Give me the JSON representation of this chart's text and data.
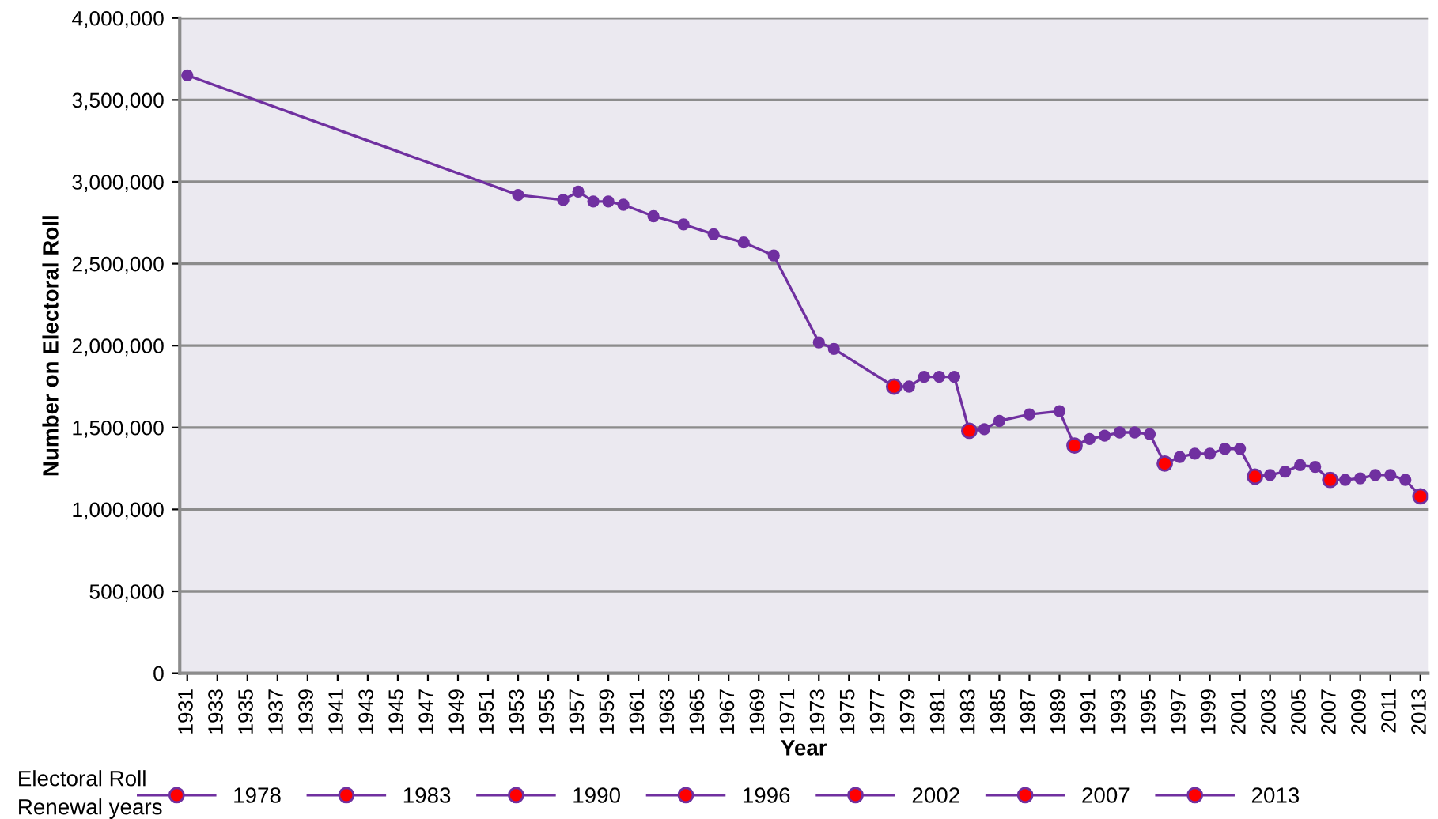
{
  "chart_data": {
    "type": "line",
    "xlabel": "Year",
    "ylabel": "Number on Electoral Roll",
    "legend_title": "Electoral Roll\nRenewal years",
    "xlim": [
      1930.5,
      2013.5
    ],
    "xticks": [
      1931,
      1933,
      1935,
      1937,
      1939,
      1941,
      1943,
      1945,
      1947,
      1949,
      1951,
      1953,
      1955,
      1957,
      1959,
      1961,
      1963,
      1965,
      1967,
      1969,
      1971,
      1973,
      1975,
      1977,
      1979,
      1981,
      1983,
      1985,
      1987,
      1989,
      1991,
      1993,
      1995,
      1997,
      1999,
      2001,
      2003,
      2005,
      2007,
      2009,
      2011,
      2013
    ],
    "ylim": [
      0,
      4000000
    ],
    "yticks": [
      {
        "value": 0,
        "label": "0"
      },
      {
        "value": 500000,
        "label": "500,000"
      },
      {
        "value": 1000000,
        "label": "1,000,000"
      },
      {
        "value": 1500000,
        "label": "1,500,000"
      },
      {
        "value": 2000000,
        "label": "2,000,000"
      },
      {
        "value": 2500000,
        "label": "2,500,000"
      },
      {
        "value": 3000000,
        "label": "3,000,000"
      },
      {
        "value": 3500000,
        "label": "3,500,000"
      },
      {
        "value": 4000000,
        "label": "4,000,000"
      }
    ],
    "grid": "y",
    "legend": "bottom",
    "marker": "circle",
    "series": [
      {
        "color": "#7030a0",
        "x": [
          1931,
          1953,
          1956,
          1957,
          1958,
          1959,
          1960,
          1962,
          1964,
          1966,
          1968,
          1970,
          1973,
          1974,
          1978,
          1979,
          1980,
          1981,
          1982,
          1983,
          1984,
          1985,
          1987,
          1989,
          1990,
          1991,
          1992,
          1993,
          1994,
          1995,
          1996,
          1997,
          1998,
          1999,
          2000,
          2001,
          2002,
          2003,
          2004,
          2005,
          2006,
          2007,
          2008,
          2009,
          2010,
          2011,
          2012,
          2013
        ],
        "values": [
          3650000,
          2920000,
          2890000,
          2940000,
          2880000,
          2880000,
          2860000,
          2790000,
          2740000,
          2680000,
          2630000,
          2550000,
          2020000,
          1980000,
          1750000,
          1750000,
          1810000,
          1810000,
          1810000,
          1480000,
          1490000,
          1540000,
          1580000,
          1600000,
          1390000,
          1430000,
          1450000,
          1470000,
          1470000,
          1460000,
          1280000,
          1320000,
          1340000,
          1340000,
          1370000,
          1370000,
          1200000,
          1210000,
          1230000,
          1270000,
          1260000,
          1180000,
          1180000,
          1190000,
          1210000,
          1210000,
          1180000,
          1080000
        ]
      },
      {
        "name": "1978",
        "color": "#ff0000",
        "x": [
          1978
        ],
        "values": [
          1750000
        ]
      },
      {
        "name": "1983",
        "color": "#ff0000",
        "x": [
          1983
        ],
        "values": [
          1480000
        ]
      },
      {
        "name": "1990",
        "color": "#ff0000",
        "x": [
          1990
        ],
        "values": [
          1390000
        ]
      },
      {
        "name": "1996",
        "color": "#ff0000",
        "x": [
          1996
        ],
        "values": [
          1280000
        ]
      },
      {
        "name": "2002",
        "color": "#ff0000",
        "x": [
          2002
        ],
        "values": [
          1200000
        ]
      },
      {
        "name": "2007",
        "color": "#ff0000",
        "x": [
          2007
        ],
        "values": [
          1180000
        ]
      },
      {
        "name": "2013",
        "color": "#ff0000",
        "x": [
          2013
        ],
        "values": [
          1080000
        ]
      }
    ]
  }
}
